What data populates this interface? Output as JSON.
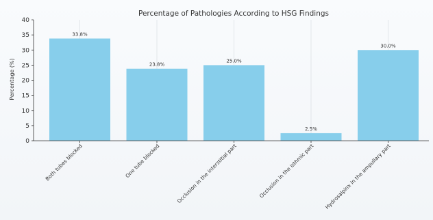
{
  "chart_data": {
    "type": "bar",
    "title": "Percentage of Pathologies According to HSG Findings",
    "xlabel": "",
    "ylabel": "Percentage (%)",
    "ylim": [
      0,
      40
    ],
    "yticks": [
      0,
      5,
      10,
      15,
      20,
      25,
      30,
      35,
      40
    ],
    "categories": [
      "Both tubes blocked",
      "One tube blocked",
      "Occlusion in the interstitial part",
      "Occlusion in the isthmic part",
      "Hydrosalpinx in the ampullary part"
    ],
    "values": [
      33.8,
      23.8,
      25.0,
      2.5,
      30.0
    ],
    "value_labels": [
      "33.8%",
      "23.8%",
      "25.0%",
      "2.5%",
      "30.0%"
    ],
    "bar_color": "#87CEEB",
    "grid": "vertical",
    "legend": "none"
  }
}
